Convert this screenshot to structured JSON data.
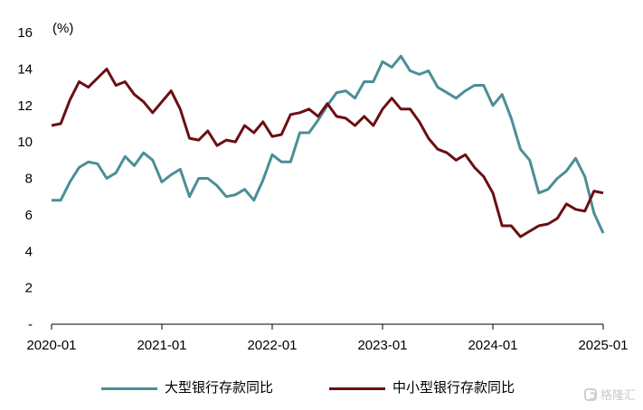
{
  "chart_data": {
    "type": "line",
    "unit_label": "(%)",
    "x_tick_labels": [
      "2020-01",
      "2021-01",
      "2022-01",
      "2023-01",
      "2024-01",
      "2025-01"
    ],
    "y_tick_labels": [
      "-",
      "2",
      "4",
      "6",
      "8",
      "10",
      "12",
      "14",
      "16"
    ],
    "ylim": [
      0,
      16
    ],
    "x_start": "2020-01",
    "x_months": 61,
    "legend_position": "bottom",
    "grid": false,
    "series": [
      {
        "name": "大型银行存款同比",
        "color": "#4a8f96",
        "values": [
          6.8,
          6.8,
          7.8,
          8.6,
          8.9,
          8.8,
          8.0,
          8.3,
          9.2,
          8.7,
          9.4,
          9.0,
          7.8,
          8.2,
          8.5,
          7.0,
          8.0,
          8.0,
          7.6,
          7.0,
          7.1,
          7.4,
          6.8,
          7.9,
          9.3,
          8.9,
          8.9,
          10.5,
          10.5,
          11.2,
          12.0,
          12.7,
          12.8,
          12.4,
          13.3,
          13.3,
          14.4,
          14.1,
          14.7,
          13.9,
          13.7,
          13.9,
          13.0,
          12.7,
          12.4,
          12.8,
          13.1,
          13.1,
          12.0,
          12.6,
          11.3,
          9.6,
          9.0,
          7.2,
          7.4,
          8.0,
          8.4,
          9.1,
          8.1,
          6.1,
          5.0
        ]
      },
      {
        "name": "中小型银行存款同比",
        "color": "#6b0f12",
        "values": [
          10.9,
          11.0,
          12.3,
          13.3,
          13.0,
          13.5,
          14.0,
          13.1,
          13.3,
          12.6,
          12.2,
          11.6,
          12.2,
          12.8,
          11.8,
          10.2,
          10.1,
          10.6,
          9.8,
          10.1,
          10.0,
          10.9,
          10.5,
          11.1,
          10.3,
          10.4,
          11.5,
          11.6,
          11.8,
          11.4,
          12.1,
          11.4,
          11.3,
          10.9,
          11.4,
          10.9,
          11.8,
          12.4,
          11.8,
          11.8,
          11.1,
          10.2,
          9.6,
          9.4,
          9.0,
          9.3,
          8.6,
          8.1,
          7.2,
          5.4,
          5.4,
          4.8,
          5.1,
          5.4,
          5.5,
          5.8,
          6.6,
          6.3,
          6.2,
          7.3,
          7.2
        ]
      }
    ]
  },
  "watermark": {
    "text": "格隆汇"
  }
}
